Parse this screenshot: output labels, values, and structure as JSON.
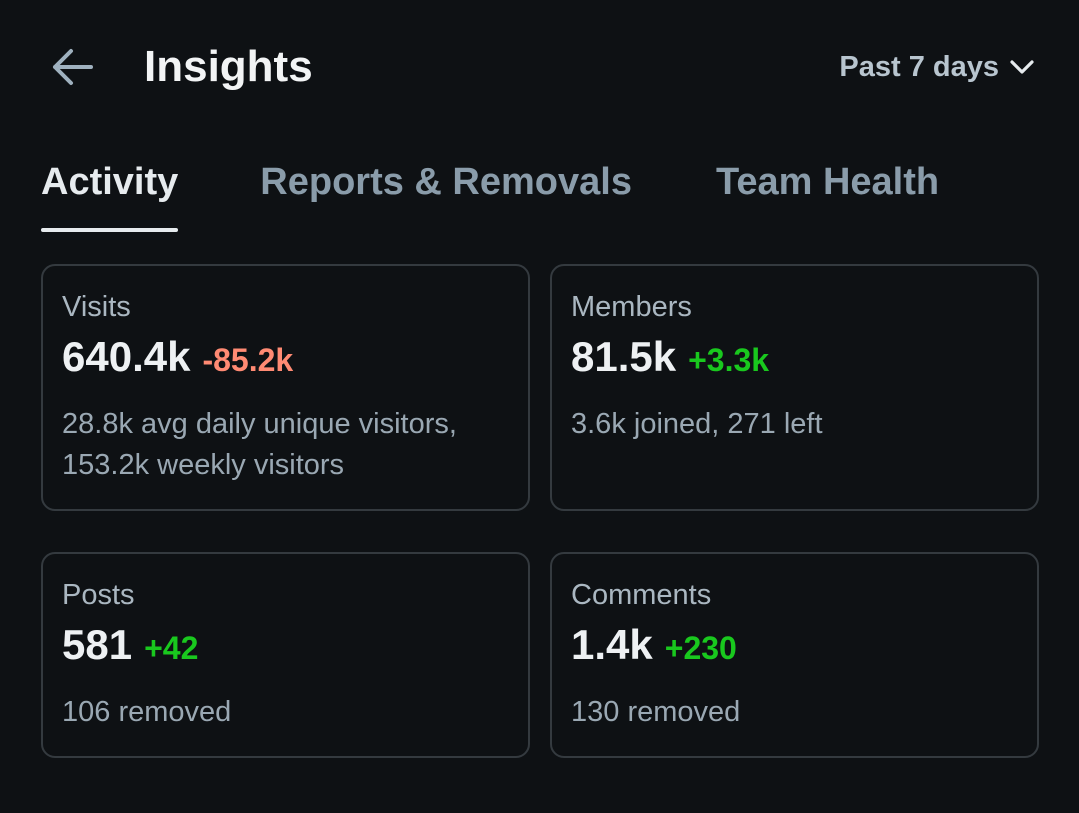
{
  "header": {
    "title": "Insights",
    "back_icon": "arrow-left-icon",
    "range": {
      "label": "Past 7 days",
      "icon": "chevron-down-icon"
    }
  },
  "tabs": [
    {
      "label": "Activity",
      "active": true
    },
    {
      "label": "Reports & Removals",
      "active": false
    },
    {
      "label": "Team Health",
      "active": false
    }
  ],
  "colors": {
    "background": "#0e1114",
    "positive": "#19c81e",
    "negative": "#ff8a73",
    "card_border": "#343a3f"
  },
  "cards": {
    "visits": {
      "label": "Visits",
      "value": "640.4k",
      "delta": "-85.2k",
      "delta_sign": "negative",
      "detail": "28.8k avg daily unique visitors, 153.2k weekly visitors"
    },
    "members": {
      "label": "Members",
      "value": "81.5k",
      "delta": "+3.3k",
      "delta_sign": "positive",
      "detail": "3.6k joined, 271 left"
    },
    "posts": {
      "label": "Posts",
      "value": "581",
      "delta": "+42",
      "delta_sign": "positive",
      "detail": "106 removed"
    },
    "comments": {
      "label": "Comments",
      "value": "1.4k",
      "delta": "+230",
      "delta_sign": "positive",
      "detail": "130 removed"
    }
  }
}
